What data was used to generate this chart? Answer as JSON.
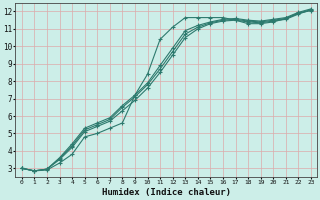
{
  "xlabel": "Humidex (Indice chaleur)",
  "bg_color": "#cceee8",
  "grid_color": "#ddaaaa",
  "line_color": "#2d7a6e",
  "xlim": [
    -0.5,
    23.5
  ],
  "ylim": [
    2.5,
    12.5
  ],
  "xticks": [
    0,
    1,
    2,
    3,
    4,
    5,
    6,
    7,
    8,
    9,
    10,
    11,
    12,
    13,
    14,
    15,
    16,
    17,
    18,
    19,
    20,
    21,
    22,
    23
  ],
  "yticks": [
    3,
    4,
    5,
    6,
    7,
    8,
    9,
    10,
    11,
    12
  ],
  "series": [
    [
      3.0,
      2.85,
      2.9,
      3.3,
      3.8,
      4.8,
      5.0,
      5.3,
      5.6,
      7.2,
      8.4,
      10.4,
      11.1,
      11.65,
      11.65,
      11.65,
      11.65,
      11.5,
      11.3,
      11.3,
      11.4,
      11.6,
      11.9,
      12.05
    ],
    [
      3.0,
      2.85,
      2.95,
      3.5,
      4.2,
      5.1,
      5.4,
      5.7,
      6.3,
      6.9,
      7.6,
      8.5,
      9.5,
      10.5,
      11.0,
      11.3,
      11.45,
      11.5,
      11.4,
      11.35,
      11.45,
      11.55,
      11.85,
      12.1
    ],
    [
      3.0,
      2.85,
      2.95,
      3.55,
      4.3,
      5.2,
      5.5,
      5.8,
      6.5,
      7.1,
      7.8,
      8.7,
      9.7,
      10.7,
      11.1,
      11.35,
      11.5,
      11.55,
      11.45,
      11.4,
      11.5,
      11.6,
      11.9,
      12.1
    ],
    [
      3.0,
      2.85,
      2.95,
      3.6,
      4.4,
      5.3,
      5.6,
      5.9,
      6.6,
      7.2,
      7.9,
      8.9,
      9.9,
      10.9,
      11.2,
      11.4,
      11.55,
      11.6,
      11.5,
      11.45,
      11.55,
      11.65,
      11.95,
      12.15
    ]
  ]
}
